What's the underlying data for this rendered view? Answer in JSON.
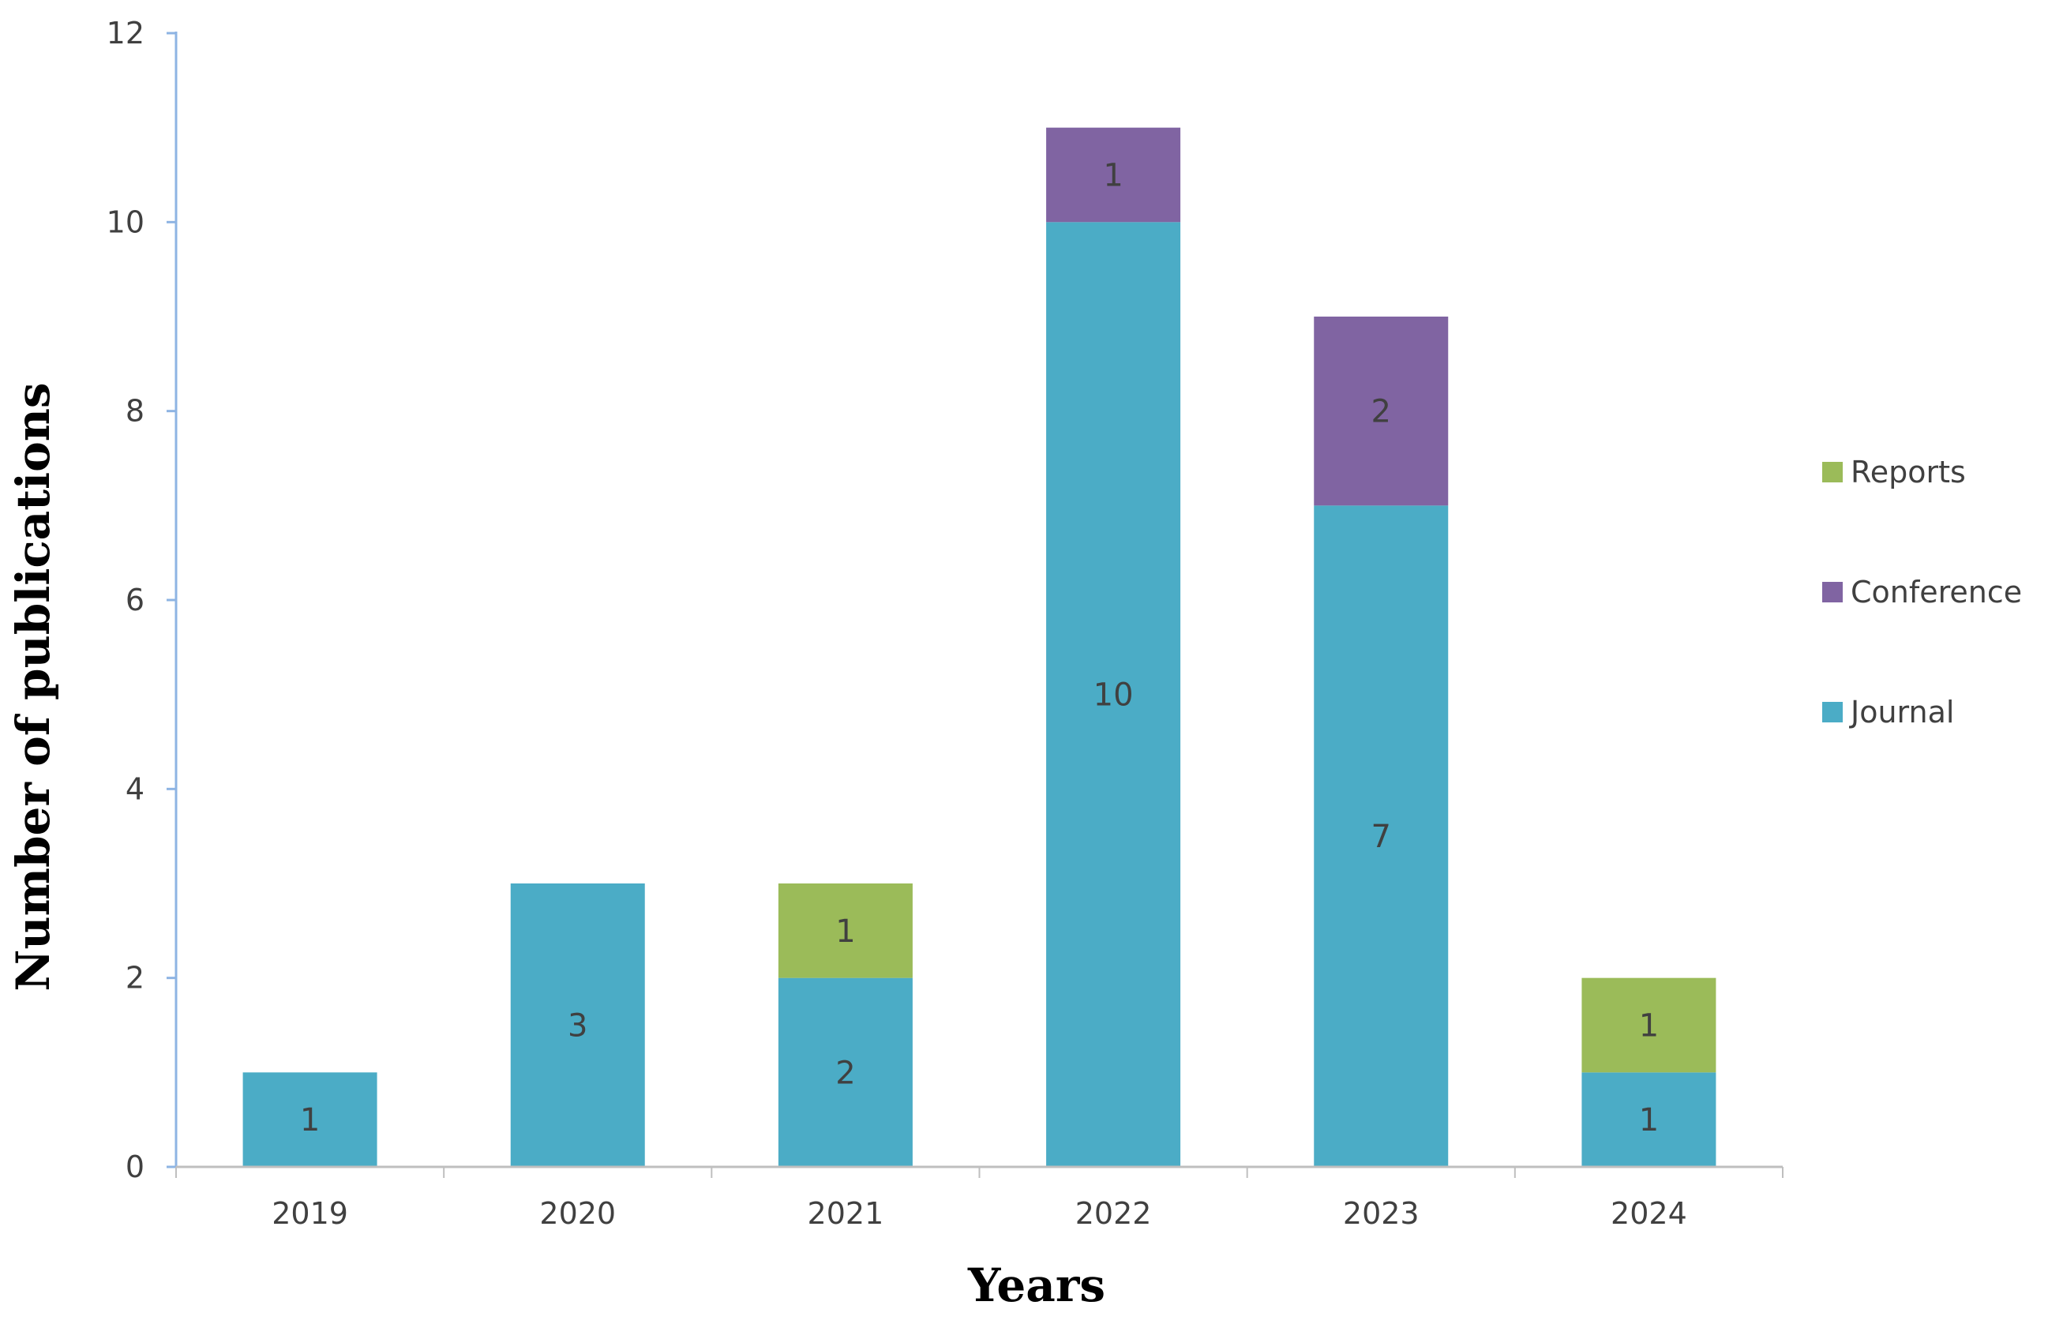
{
  "chart_data": {
    "type": "bar",
    "stacked": true,
    "title": "",
    "xlabel": "Years",
    "ylabel": "Number of publications",
    "categories": [
      "2019",
      "2020",
      "2021",
      "2022",
      "2023",
      "2024"
    ],
    "ylim": [
      0,
      12
    ],
    "yticks": [
      "0",
      "2",
      "4",
      "6",
      "8",
      "10",
      "12"
    ],
    "grid": false,
    "legend_position": "right",
    "series": [
      {
        "name": "Journal",
        "color": "#4bacc6",
        "values": [
          1,
          3,
          2,
          10,
          7,
          1
        ]
      },
      {
        "name": "Conference",
        "color": "#8064a2",
        "values": [
          0,
          0,
          0,
          1,
          2,
          0
        ]
      },
      {
        "name": "Reports",
        "color": "#9bbb59",
        "values": [
          0,
          0,
          1,
          0,
          0,
          1
        ]
      }
    ],
    "legend_order": [
      "Reports",
      "Conference",
      "Journal"
    ],
    "axis_color": "#8eb4e3"
  }
}
